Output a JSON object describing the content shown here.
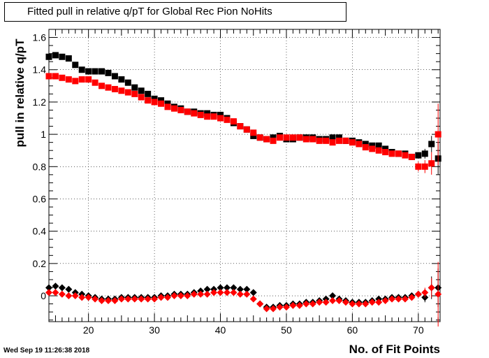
{
  "title": "Fitted pull in relative q/pT for Global Rec Pion NoHits",
  "timestamp": "Wed Sep 19 11:26:38 2018",
  "colors": {
    "series_black": "#000000",
    "series_red": "#ff0000"
  },
  "chart_data": {
    "type": "scatter",
    "xlabel": "No. of Fit Points",
    "ylabel": "pull in relative q/pT",
    "xlim": [
      14,
      73.3
    ],
    "ylim": [
      -0.16,
      1.65
    ],
    "x_ticks": [
      20,
      30,
      40,
      50,
      60,
      70
    ],
    "y_ticks": [
      0,
      0.2,
      0.4,
      0.6,
      0.8,
      1,
      1.2,
      1.4,
      1.6
    ],
    "x_tick_labels": [
      "20",
      "30",
      "40",
      "50",
      "60",
      "70"
    ],
    "y_tick_labels": [
      "0",
      "0.2",
      "0.4",
      "0.6",
      "0.8",
      "1",
      "1.2",
      "1.4",
      "1.6"
    ],
    "grid": true,
    "legend": "none",
    "series": [
      {
        "marker": "square",
        "color": "#000000",
        "x": [
          14,
          15,
          16,
          17,
          18,
          19,
          20,
          21,
          22,
          23,
          24,
          25,
          26,
          27,
          28,
          29,
          30,
          31,
          32,
          33,
          34,
          35,
          36,
          37,
          38,
          39,
          40,
          41,
          42,
          43,
          44,
          45,
          46,
          47,
          48,
          49,
          50,
          51,
          52,
          53,
          54,
          55,
          56,
          57,
          58,
          59,
          60,
          61,
          62,
          63,
          64,
          65,
          66,
          67,
          68,
          69,
          70,
          71,
          72,
          73
        ],
        "y": [
          1.48,
          1.49,
          1.48,
          1.47,
          1.43,
          1.4,
          1.39,
          1.39,
          1.39,
          1.38,
          1.36,
          1.34,
          1.32,
          1.29,
          1.27,
          1.25,
          1.22,
          1.21,
          1.19,
          1.17,
          1.16,
          1.14,
          1.14,
          1.13,
          1.13,
          1.12,
          1.12,
          1.1,
          1.07,
          1.05,
          1.03,
          0.99,
          0.98,
          0.97,
          0.98,
          0.99,
          0.97,
          0.97,
          0.98,
          0.98,
          0.98,
          0.97,
          0.97,
          0.98,
          0.98,
          0.96,
          0.96,
          0.95,
          0.94,
          0.93,
          0.93,
          0.91,
          0.89,
          0.88,
          0.88,
          0.86,
          0.87,
          0.88,
          0.94,
          0.85
        ],
        "err": [
          0,
          0,
          0,
          0,
          0,
          0,
          0,
          0,
          0,
          0,
          0,
          0,
          0,
          0,
          0,
          0,
          0,
          0,
          0,
          0,
          0,
          0,
          0,
          0,
          0,
          0,
          0,
          0,
          0,
          0,
          0,
          0,
          0,
          0,
          0,
          0,
          0,
          0,
          0,
          0,
          0,
          0,
          0,
          0,
          0,
          0,
          0,
          0,
          0,
          0,
          0,
          0,
          0,
          0,
          0,
          0,
          0.02,
          0.03,
          0.05,
          0.1
        ]
      },
      {
        "marker": "square",
        "color": "#ff0000",
        "x": [
          14,
          15,
          16,
          17,
          18,
          19,
          20,
          21,
          22,
          23,
          24,
          25,
          26,
          27,
          28,
          29,
          30,
          31,
          32,
          33,
          34,
          35,
          36,
          37,
          38,
          39,
          40,
          41,
          42,
          43,
          44,
          45,
          46,
          47,
          48,
          49,
          50,
          51,
          52,
          53,
          54,
          55,
          56,
          57,
          58,
          59,
          60,
          61,
          62,
          63,
          64,
          65,
          66,
          67,
          68,
          69,
          70,
          71,
          72,
          73
        ],
        "y": [
          1.36,
          1.36,
          1.35,
          1.34,
          1.33,
          1.34,
          1.34,
          1.32,
          1.3,
          1.29,
          1.28,
          1.27,
          1.26,
          1.25,
          1.23,
          1.21,
          1.2,
          1.19,
          1.17,
          1.16,
          1.15,
          1.14,
          1.13,
          1.12,
          1.11,
          1.11,
          1.1,
          1.09,
          1.08,
          1.05,
          1.03,
          1.01,
          0.98,
          0.97,
          0.96,
          0.98,
          0.98,
          0.98,
          0.98,
          0.97,
          0.97,
          0.96,
          0.96,
          0.95,
          0.96,
          0.96,
          0.95,
          0.94,
          0.92,
          0.91,
          0.9,
          0.89,
          0.88,
          0.88,
          0.87,
          0.86,
          0.8,
          0.8,
          0.82,
          1.0
        ],
        "err": [
          0,
          0,
          0,
          0,
          0,
          0,
          0,
          0,
          0,
          0,
          0,
          0,
          0,
          0,
          0,
          0,
          0,
          0,
          0,
          0,
          0,
          0,
          0,
          0,
          0,
          0,
          0,
          0,
          0,
          0,
          0,
          0,
          0,
          0,
          0,
          0,
          0,
          0,
          0,
          0,
          0,
          0,
          0,
          0,
          0,
          0,
          0,
          0,
          0,
          0,
          0,
          0,
          0,
          0,
          0,
          0,
          0.03,
          0.04,
          0.07,
          0.19
        ]
      },
      {
        "marker": "diamond",
        "color": "#000000",
        "x": [
          14,
          15,
          16,
          17,
          18,
          19,
          20,
          21,
          22,
          23,
          24,
          25,
          26,
          27,
          28,
          29,
          30,
          31,
          32,
          33,
          34,
          35,
          36,
          37,
          38,
          39,
          40,
          41,
          42,
          43,
          44,
          45,
          46,
          47,
          48,
          49,
          50,
          51,
          52,
          53,
          54,
          55,
          56,
          57,
          58,
          59,
          60,
          61,
          62,
          63,
          64,
          65,
          66,
          67,
          68,
          69,
          70,
          71,
          72,
          73
        ],
        "y": [
          0.05,
          0.06,
          0.05,
          0.04,
          0.02,
          0.01,
          0.0,
          -0.01,
          -0.02,
          -0.02,
          -0.02,
          -0.01,
          -0.01,
          -0.01,
          -0.01,
          -0.01,
          -0.01,
          0.0,
          0.0,
          0.01,
          0.01,
          0.01,
          0.02,
          0.03,
          0.04,
          0.04,
          0.05,
          0.05,
          0.05,
          0.04,
          0.04,
          0.02,
          -0.05,
          -0.07,
          -0.07,
          -0.06,
          -0.06,
          -0.05,
          -0.05,
          -0.04,
          -0.04,
          -0.03,
          -0.02,
          0.0,
          -0.02,
          -0.03,
          -0.04,
          -0.04,
          -0.04,
          -0.03,
          -0.02,
          -0.02,
          -0.01,
          -0.01,
          -0.01,
          0.0,
          0.01,
          -0.01,
          0.05,
          0.05
        ],
        "err": [
          0,
          0,
          0,
          0,
          0,
          0,
          0,
          0,
          0,
          0,
          0,
          0,
          0,
          0,
          0,
          0,
          0,
          0,
          0,
          0,
          0,
          0,
          0,
          0,
          0,
          0,
          0,
          0,
          0,
          0,
          0,
          0,
          0,
          0,
          0,
          0,
          0,
          0,
          0,
          0,
          0,
          0,
          0,
          0,
          0,
          0,
          0,
          0,
          0,
          0,
          0,
          0,
          0,
          0,
          0,
          0,
          0.02,
          0.03,
          0.07,
          0.12
        ]
      },
      {
        "marker": "diamond",
        "color": "#ff0000",
        "x": [
          14,
          15,
          16,
          17,
          18,
          19,
          20,
          21,
          22,
          23,
          24,
          25,
          26,
          27,
          28,
          29,
          30,
          31,
          32,
          33,
          34,
          35,
          36,
          37,
          38,
          39,
          40,
          41,
          42,
          43,
          44,
          45,
          46,
          47,
          48,
          49,
          50,
          51,
          52,
          53,
          54,
          55,
          56,
          57,
          58,
          59,
          60,
          61,
          62,
          63,
          64,
          65,
          66,
          67,
          68,
          69,
          70,
          71,
          72,
          73
        ],
        "y": [
          0.02,
          0.02,
          0.01,
          0.0,
          0.0,
          -0.01,
          -0.01,
          -0.02,
          -0.03,
          -0.03,
          -0.03,
          -0.02,
          -0.02,
          -0.02,
          -0.02,
          -0.02,
          -0.02,
          -0.01,
          -0.01,
          0.0,
          0.0,
          0.0,
          0.01,
          0.01,
          0.01,
          0.02,
          0.02,
          0.02,
          0.02,
          0.01,
          0.01,
          -0.02,
          -0.05,
          -0.08,
          -0.08,
          -0.07,
          -0.07,
          -0.06,
          -0.06,
          -0.05,
          -0.05,
          -0.04,
          -0.04,
          -0.03,
          -0.03,
          -0.04,
          -0.05,
          -0.05,
          -0.05,
          -0.04,
          -0.04,
          -0.03,
          -0.02,
          -0.02,
          -0.02,
          -0.01,
          0.01,
          0.02,
          0.05,
          0.01
        ],
        "err": [
          0,
          0,
          0,
          0,
          0,
          0,
          0,
          0,
          0,
          0,
          0,
          0,
          0,
          0,
          0,
          0,
          0,
          0,
          0,
          0,
          0,
          0,
          0,
          0,
          0,
          0,
          0,
          0,
          0,
          0,
          0,
          0,
          0,
          0,
          0,
          0,
          0,
          0,
          0,
          0,
          0,
          0,
          0,
          0,
          0,
          0,
          0,
          0,
          0,
          0,
          0,
          0,
          0,
          0,
          0,
          0,
          0.02,
          0.03,
          0.06,
          0.2
        ]
      }
    ]
  }
}
